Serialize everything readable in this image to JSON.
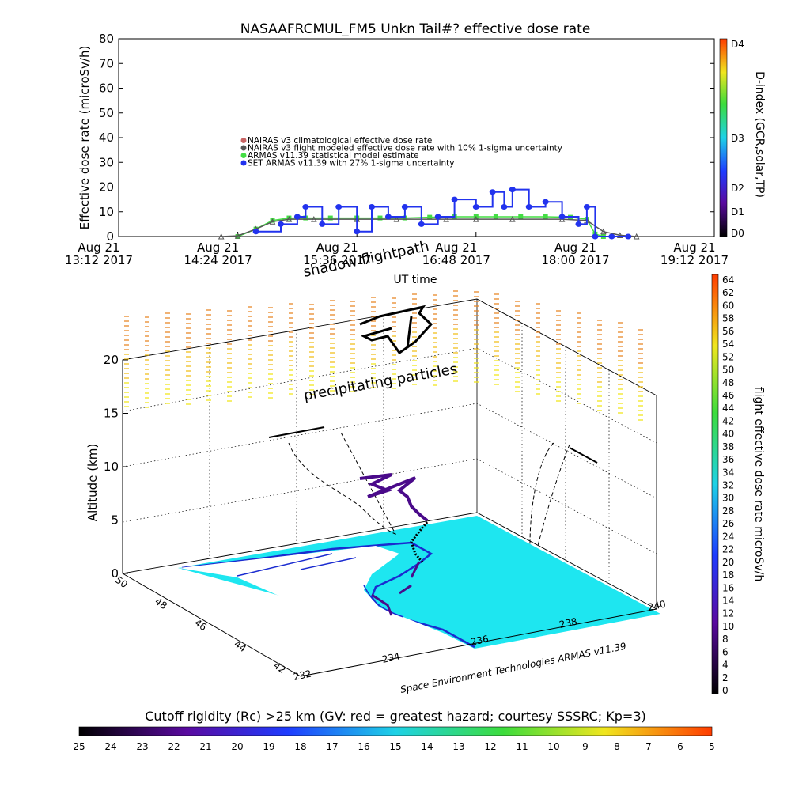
{
  "page": {
    "title": "NASAAFRCMUL_FM5 Unkn Tail#? effective dose rate",
    "footer_credit": "Space Environment Technologies ARMAS v11.39"
  },
  "chart_data": [
    {
      "type": "line",
      "title": "NASAAFRCMUL_FM5 Unkn Tail#? effective dose rate",
      "xlabel": "UT time",
      "ylabel": "Effective dose rate (microSv/h)",
      "ylim": [
        0,
        80
      ],
      "yticks": [
        0,
        10,
        20,
        30,
        40,
        50,
        60,
        70,
        80
      ],
      "xticks": [
        {
          "line1": "Aug 21",
          "line2": "13:12 2017"
        },
        {
          "line1": "Aug 21",
          "line2": "14:24 2017"
        },
        {
          "line1": "Aug 21",
          "line2": "15:36 2017"
        },
        {
          "line1": "Aug 21",
          "line2": "16:48 2017"
        },
        {
          "line1": "Aug 21",
          "line2": "18:00 2017"
        },
        {
          "line1": "Aug 21",
          "line2": "19:12 2017"
        }
      ],
      "legend": [
        {
          "label": "NAIRAS v3 climatological effective dose rate",
          "color": "#c86464"
        },
        {
          "label": "NAIRAS v3 flight modeled effective dose rate with 10% 1-sigma uncertainty",
          "color": "#555555"
        },
        {
          "label": "ARMAS v11.39 statistical model estimate",
          "color": "#44dd44"
        },
        {
          "label": "SET ARMAS v11.39 with 27% 1-sigma uncertainty",
          "color": "#2233ee"
        }
      ],
      "legend_position": "center-left",
      "series": [
        {
          "name": "ARMAS v11.39 statistical model estimate",
          "color": "#44dd44",
          "x": [
            "14:24",
            "14:35",
            "14:45",
            "14:55",
            "15:05",
            "15:20",
            "15:36",
            "15:50",
            "16:05",
            "16:20",
            "16:35",
            "16:48",
            "17:00",
            "17:15",
            "17:30",
            "17:45",
            "17:55",
            "18:00",
            "18:05"
          ],
          "y": [
            0,
            3,
            6.5,
            7.5,
            7.5,
            7.5,
            7.5,
            7.5,
            7.5,
            7.8,
            8,
            8,
            8,
            8,
            8,
            7.8,
            7,
            1,
            0
          ]
        },
        {
          "name": "NAIRAS v3 flight modeled effective dose rate with 10% 1-sigma uncertainty",
          "color": "#555555",
          "x": [
            "14:14",
            "14:24",
            "14:35",
            "14:45",
            "14:55",
            "15:10",
            "15:36",
            "16:00",
            "16:30",
            "16:48",
            "17:10",
            "17:40",
            "17:55",
            "18:05",
            "18:15",
            "18:25"
          ],
          "y": [
            0,
            0.3,
            3,
            6,
            7,
            7,
            7,
            7,
            7,
            7,
            7,
            7,
            6.5,
            2,
            0.5,
            0
          ]
        },
        {
          "name": "SET ARMAS v11.39 with 27% 1-sigma uncertainty",
          "color": "#2233ee",
          "x": [
            "14:35",
            "14:50",
            "15:00",
            "15:05",
            "15:15",
            "15:25",
            "15:36",
            "15:45",
            "15:55",
            "16:05",
            "16:15",
            "16:25",
            "16:35",
            "16:48",
            "16:58",
            "17:05",
            "17:10",
            "17:20",
            "17:30",
            "17:40",
            "17:50",
            "17:55",
            "18:00",
            "18:10",
            "18:20"
          ],
          "y": [
            2,
            5,
            8,
            12,
            5,
            12,
            2,
            12,
            8,
            12,
            5,
            8,
            15,
            12,
            18,
            12,
            19,
            12,
            14,
            8,
            5,
            12,
            0,
            0,
            0
          ]
        }
      ],
      "right_axis": {
        "label": "D-index (GCR,solar,TP)",
        "ticks": [
          "D0",
          "D1",
          "D2",
          "D3",
          "D4"
        ],
        "colors": [
          "#000000",
          "#5a0aa0",
          "#1e3cff",
          "#1ed2e6",
          "#3cdc3c",
          "#f0e61e",
          "#ff3c00"
        ]
      }
    },
    {
      "type": "3d-trajectory",
      "zlabel": "Altitude (km)",
      "zticks": [
        0,
        5,
        10,
        15,
        20
      ],
      "lat_ticks": [
        "50",
        "48",
        "46",
        "44",
        "42"
      ],
      "lon_ticks": [
        "232",
        "234",
        "236",
        "238",
        "240"
      ],
      "annotations": [
        "shadow flightpath",
        "precipitating particles"
      ],
      "colorbar": {
        "label": "flight effective dose rate microSv/h",
        "ticks": [
          "0",
          "2",
          "4",
          "6",
          "8",
          "10",
          "12",
          "14",
          "16",
          "18",
          "20",
          "22",
          "24",
          "26",
          "28",
          "30",
          "32",
          "34",
          "36",
          "38",
          "40",
          "42",
          "44",
          "46",
          "48",
          "50",
          "52",
          "54",
          "56",
          "58",
          "60",
          "62",
          "64"
        ],
        "colors": [
          "#000000",
          "#5a0aa0",
          "#1e3cff",
          "#1ed2e6",
          "#3cdc3c",
          "#f0e61e",
          "#ff3c00"
        ]
      }
    },
    {
      "type": "colorbar",
      "label": "Cutoff rigidity (Rc) >25 km (GV: red = greatest hazard; courtesy SSSRC; Kp=3)",
      "ticks": [
        "25",
        "24",
        "23",
        "22",
        "21",
        "20",
        "19",
        "18",
        "17",
        "16",
        "15",
        "14",
        "13",
        "12",
        "11",
        "10",
        "9",
        "8",
        "7",
        "6",
        "5"
      ],
      "colors": [
        "#000000",
        "#5a0aa0",
        "#1e3cff",
        "#1ed2e6",
        "#3cdc3c",
        "#f0e61e",
        "#ff3c00"
      ]
    }
  ]
}
